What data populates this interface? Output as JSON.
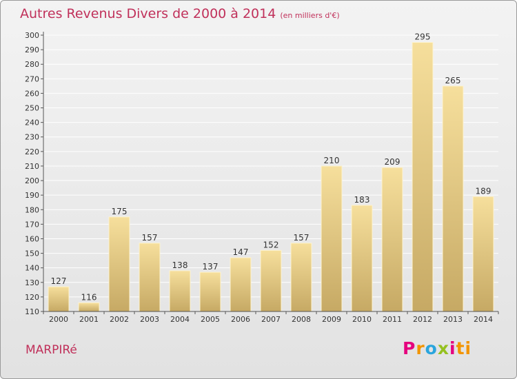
{
  "title": "Autres Revenus Divers de 2000 à 2014",
  "subtitle": "(en milliers d'€)",
  "commune": "MARPIRé",
  "logo": [
    "P",
    "r",
    "o",
    "x",
    "i",
    "ti"
  ],
  "colors": {
    "title": "#c0305a",
    "bar_top": "#f6df9c",
    "bar_bottom": "#c6a964",
    "grid": "#ffffff"
  },
  "chart_data": {
    "type": "bar",
    "categories": [
      "2000",
      "2001",
      "2002",
      "2003",
      "2004",
      "2005",
      "2006",
      "2007",
      "2008",
      "2009",
      "2010",
      "2011",
      "2012",
      "2013",
      "2014"
    ],
    "values": [
      127,
      116,
      175,
      157,
      138,
      137,
      147,
      152,
      157,
      210,
      183,
      209,
      295,
      265,
      189
    ],
    "ylim": [
      110,
      300
    ],
    "yticks": [
      110,
      120,
      130,
      140,
      150,
      160,
      170,
      180,
      190,
      200,
      210,
      220,
      230,
      240,
      250,
      260,
      270,
      280,
      290,
      300
    ],
    "grid": true,
    "data_labels": true
  }
}
